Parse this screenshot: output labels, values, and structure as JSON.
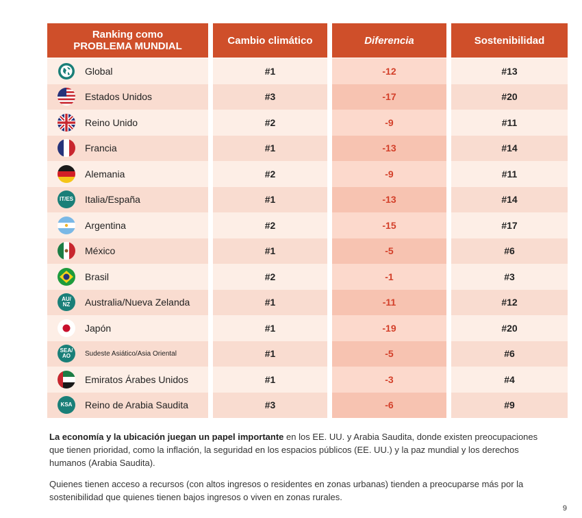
{
  "table": {
    "headers": {
      "col1_line1": "Ranking como",
      "col1_line2": "PROBLEMA MUNDIAL",
      "col2": "Cambio climático",
      "col3": "Diferencia",
      "col4": "Sostenibilidad"
    },
    "rows": [
      {
        "country": "Global",
        "flag": "globe-icon",
        "climate": "#1",
        "diff": "-12",
        "sust": "#13"
      },
      {
        "country": "Estados Unidos",
        "flag": "us-flag-icon",
        "climate": "#3",
        "diff": "-17",
        "sust": "#20"
      },
      {
        "country": "Reino Unido",
        "flag": "uk-flag-icon",
        "climate": "#2",
        "diff": "-9",
        "sust": "#11"
      },
      {
        "country": "Francia",
        "flag": "france-flag-icon",
        "climate": "#1",
        "diff": "-13",
        "sust": "#14"
      },
      {
        "country": "Alemania",
        "flag": "germany-flag-icon",
        "climate": "#2",
        "diff": "-9",
        "sust": "#11"
      },
      {
        "country": "Italia/España",
        "flag": "it-es-badge-icon",
        "badge_text": "IT/ES",
        "climate": "#1",
        "diff": "-13",
        "sust": "#14"
      },
      {
        "country": "Argentina",
        "flag": "argentina-flag-icon",
        "climate": "#2",
        "diff": "-15",
        "sust": "#17"
      },
      {
        "country": "México",
        "flag": "mexico-flag-icon",
        "climate": "#1",
        "diff": "-5",
        "sust": "#6"
      },
      {
        "country": "Brasil",
        "flag": "brazil-flag-icon",
        "climate": "#2",
        "diff": "-1",
        "sust": "#3"
      },
      {
        "country": "Australia/Nueva Zelanda",
        "flag": "au-nz-badge-icon",
        "badge_text": "AU/ NZ",
        "climate": "#1",
        "diff": "-11",
        "sust": "#12"
      },
      {
        "country": "Japón",
        "flag": "japan-flag-icon",
        "climate": "#1",
        "diff": "-19",
        "sust": "#20"
      },
      {
        "country": "Sudeste Asiático/Asia Oriental",
        "flag": "sea-ao-badge-icon",
        "badge_text": "SEA/ AO",
        "climate": "#1",
        "diff": "-5",
        "sust": "#6"
      },
      {
        "country": "Emiratos Árabes Unidos",
        "flag": "uae-flag-icon",
        "climate": "#1",
        "diff": "-3",
        "sust": "#4"
      },
      {
        "country": "Reino de Arabia Saudita",
        "flag": "ksa-badge-icon",
        "badge_text": "KSA",
        "climate": "#3",
        "diff": "-6",
        "sust": "#9"
      }
    ]
  },
  "notes": {
    "p1_bold": "La economía y la ubicación juegan un papel importante",
    "p1_rest": " en los EE.  UU. y Arabia Saudita, donde existen preocupaciones que tienen prioridad, como la inflación, la seguridad en los espacios públicos (EE. UU.) y la paz mundial y los derechos humanos (Arabia Saudita).",
    "p2": "Quienes tienen acceso a recursos (con altos ingresos o residentes en zonas urbanas) tienden a preocuparse más por la sostenibilidad que quienes tienen bajos ingresos o viven en zonas rurales."
  },
  "page_number": "9",
  "colors": {
    "header": "#cf4f2a",
    "diff_text": "#d3402a",
    "row_light": "#fdeee6",
    "row_dark": "#f9dcd0",
    "badge": "#1a7f78"
  }
}
